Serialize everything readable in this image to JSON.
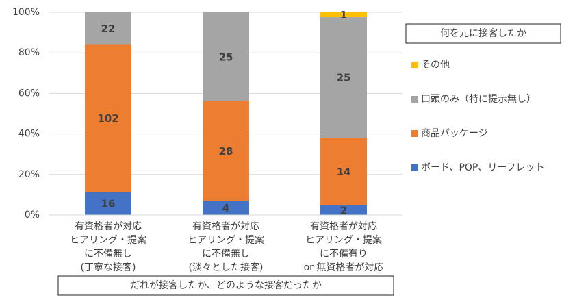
{
  "chart_data": {
    "type": "bar",
    "stacked_percent": true,
    "categories": [
      [
        "有資格者が対応",
        "ヒアリング・提案",
        "に不備無し",
        "(丁寧な接客)"
      ],
      [
        "有資格者が対応",
        "ヒアリング・提案",
        "に不備無し",
        "(淡々とした接客)"
      ],
      [
        "有資格者が対応",
        "ヒアリング・提案",
        "に不備有り",
        "or 無資格者が対応"
      ]
    ],
    "series": [
      {
        "name": "ボード、POP、リーフレット",
        "color": "#4472c4",
        "values": [
          16,
          4,
          2
        ]
      },
      {
        "name": "商品パッケージ",
        "color": "#ed7d31",
        "values": [
          102,
          28,
          14
        ]
      },
      {
        "name": "口頭のみ（特に提示無し）",
        "color": "#a5a5a5",
        "values": [
          22,
          25,
          25
        ]
      },
      {
        "name": "その他",
        "color": "#ffc000",
        "values": [
          null,
          null,
          1
        ]
      }
    ],
    "ylim": [
      0,
      100
    ],
    "yticks": [
      {
        "value": 0,
        "label": "0%"
      },
      {
        "value": 20,
        "label": "20%"
      },
      {
        "value": 40,
        "label": "40%"
      },
      {
        "value": 60,
        "label": "60%"
      },
      {
        "value": 80,
        "label": "80%"
      },
      {
        "value": 100,
        "label": "100%"
      }
    ],
    "grid": true,
    "legend_title": "何を元に接客したか",
    "legend": "right",
    "xlabel": "だれが接客したか、どのような接客だったか"
  }
}
